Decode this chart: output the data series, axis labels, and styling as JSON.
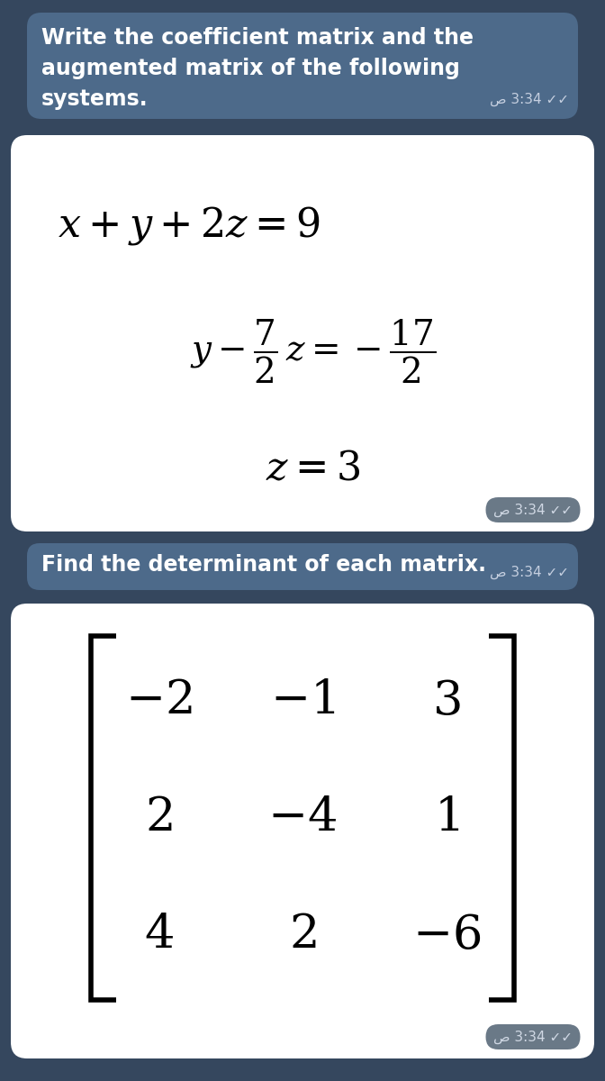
{
  "bg_color": "#35475e",
  "msg1_bg": "#4d6a8a",
  "msg3_bg": "#4d6a8a",
  "timestamp_text": "ص 3:34 ✓✓",
  "timestamp_text_inline": "ص 3:34 ✓✓",
  "msg1_text_line1": "Write the coefficient matrix and the",
  "msg1_text_line2": "augmented matrix of the following",
  "msg1_text_line3": "systems.",
  "msg3_text": "Find the determinant of each matrix.",
  "matrix": [
    [
      -2,
      -1,
      3
    ],
    [
      2,
      -4,
      1
    ],
    [
      4,
      2,
      -6
    ]
  ],
  "font_size_msg": 17,
  "font_size_eq": 30,
  "font_size_matrix": 38,
  "white_color": "#ffffff",
  "black_color": "#000000",
  "timestamp_bubble_color": "#5a6a7a"
}
